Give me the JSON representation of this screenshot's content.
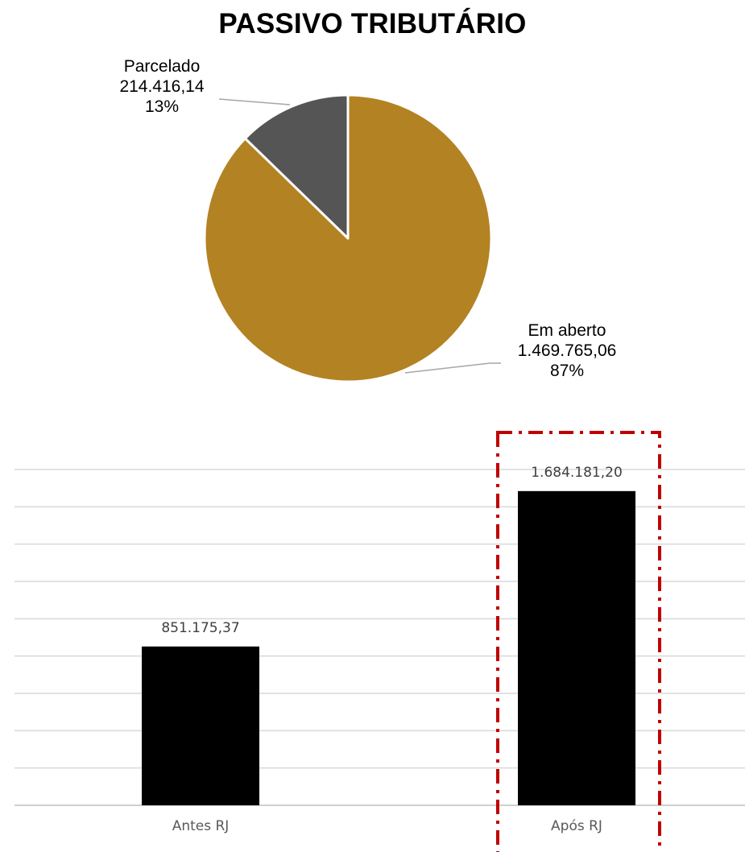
{
  "title": "PASSIVO TRIBUTÁRIO",
  "chart_data": [
    {
      "type": "pie",
      "slices": [
        {
          "name": "Parcelado",
          "value_label": "214.416,14",
          "value": 214416.14,
          "percent_label": "13%",
          "color": "#555555"
        },
        {
          "name": "Em aberto",
          "value_label": "1.469.765,06",
          "value": 1469765.06,
          "percent_label": "87%",
          "color": "#b38223"
        }
      ]
    },
    {
      "type": "bar",
      "categories": [
        "Antes RJ",
        "Após RJ"
      ],
      "values": [
        851175.37,
        1684181.2
      ],
      "value_labels": [
        "851.175,37",
        "1.684.181,20"
      ],
      "bar_color": "#000000",
      "grid": true,
      "highlight": {
        "category": "Após RJ",
        "style": "dash-dot",
        "color": "#c00000"
      }
    }
  ]
}
